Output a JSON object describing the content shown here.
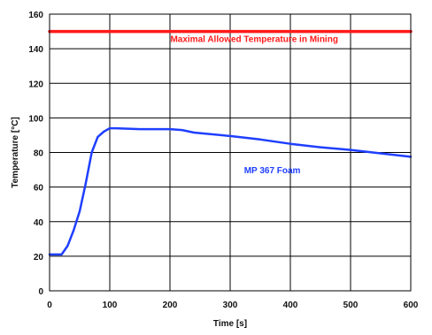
{
  "chart_data": {
    "type": "line",
    "title": "",
    "xlabel": "Time [s]",
    "ylabel": "Temperature [°C]",
    "xlim": [
      0,
      600
    ],
    "ylim": [
      0,
      160
    ],
    "xticks": [
      0,
      100,
      200,
      300,
      400,
      500,
      600
    ],
    "yticks": [
      0,
      20,
      40,
      60,
      80,
      100,
      120,
      140,
      160
    ],
    "grid": true,
    "legend": "none",
    "series": [
      {
        "name": "MP 367 Foam",
        "color": "#1f3fff",
        "x": [
          0,
          20,
          30,
          40,
          50,
          60,
          70,
          80,
          90,
          100,
          110,
          150,
          200,
          220,
          240,
          300,
          350,
          400,
          450,
          500,
          550,
          600
        ],
        "y": [
          21,
          21,
          26,
          35,
          46,
          62,
          80,
          89,
          92,
          94,
          94,
          93.5,
          93.5,
          93,
          91.5,
          89.5,
          87.5,
          85,
          83,
          81.5,
          79.5,
          77.5
        ]
      },
      {
        "name": "Maximal Allowed Temperature in Mining",
        "color": "#ff1a1a",
        "x": [
          0,
          600
        ],
        "y": [
          150,
          150
        ]
      }
    ],
    "annotations": [
      {
        "text": "Maximal Allowed Temperature in Mining",
        "x": 340,
        "y": 144,
        "color": "#ff1a1a"
      },
      {
        "text": "MP 367 Foam",
        "x": 370,
        "y": 68,
        "color": "#1f3fff"
      }
    ]
  }
}
